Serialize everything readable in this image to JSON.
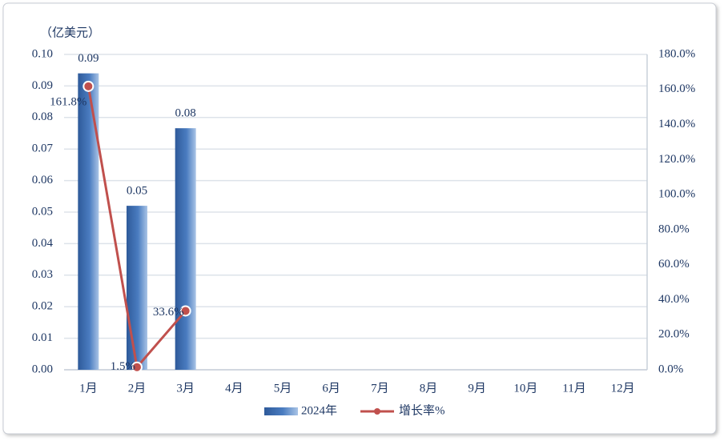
{
  "chart_data": {
    "type": "bar",
    "unit_label": "（亿美元）",
    "categories": [
      "1月",
      "2月",
      "3月",
      "4月",
      "5月",
      "6月",
      "7月",
      "8月",
      "9月",
      "10月",
      "11月",
      "12月"
    ],
    "series": [
      {
        "name": "2024年",
        "type": "bar",
        "color": "#3b6aad",
        "values": [
          0.094,
          0.052,
          0.0766,
          null,
          null,
          null,
          null,
          null,
          null,
          null,
          null,
          null
        ],
        "value_labels": [
          "0.09",
          "0.05",
          "0.08",
          null,
          null,
          null,
          null,
          null,
          null,
          null,
          null,
          null
        ]
      },
      {
        "name": "增长率%",
        "type": "line",
        "axis": "y2",
        "color": "#c0504d",
        "values": [
          161.8,
          1.5,
          33.6,
          null,
          null,
          null,
          null,
          null,
          null,
          null,
          null,
          null
        ],
        "value_labels": [
          "161.8%",
          "1.5%",
          "33.6%",
          null,
          null,
          null,
          null,
          null,
          null,
          null,
          null,
          null
        ]
      }
    ],
    "ylim": [
      0,
      0.1
    ],
    "yticks": [
      {
        "value": 0,
        "label": "0.00"
      },
      {
        "value": 0.01,
        "label": "0.01"
      },
      {
        "value": 0.02,
        "label": "0.02"
      },
      {
        "value": 0.03,
        "label": "0.03"
      },
      {
        "value": 0.04,
        "label": "0.04"
      },
      {
        "value": 0.05,
        "label": "0.05"
      },
      {
        "value": 0.06,
        "label": "0.06"
      },
      {
        "value": 0.07,
        "label": "0.07"
      },
      {
        "value": 0.08,
        "label": "0.08"
      },
      {
        "value": 0.09,
        "label": "0.09"
      },
      {
        "value": 0.1,
        "label": "0.10"
      }
    ],
    "y2lim": [
      0,
      180
    ],
    "y2ticks": [
      {
        "value": 0,
        "label": "0.0%"
      },
      {
        "value": 20,
        "label": "20.0%"
      },
      {
        "value": 40,
        "label": "40.0%"
      },
      {
        "value": 60,
        "label": "60.0%"
      },
      {
        "value": 80,
        "label": "80.0%"
      },
      {
        "value": 100,
        "label": "100.0%"
      },
      {
        "value": 120,
        "label": "120.0%"
      },
      {
        "value": 140,
        "label": "140.0%"
      },
      {
        "value": 160,
        "label": "160.0%"
      },
      {
        "value": 180,
        "label": "180.0%"
      }
    ],
    "grid": true,
    "legend": "bottom"
  }
}
